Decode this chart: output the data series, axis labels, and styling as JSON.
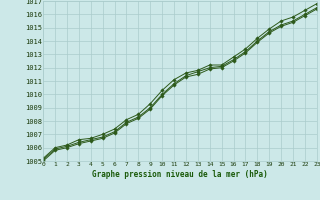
{
  "x": [
    0,
    1,
    2,
    3,
    4,
    5,
    6,
    7,
    8,
    9,
    10,
    11,
    12,
    13,
    14,
    15,
    16,
    17,
    18,
    19,
    20,
    21,
    22,
    23
  ],
  "line1": [
    1005.2,
    1006.0,
    1006.2,
    1006.6,
    1006.7,
    1007.0,
    1007.4,
    1008.1,
    1008.5,
    1009.3,
    1010.3,
    1011.1,
    1011.6,
    1011.8,
    1012.2,
    1012.2,
    1012.8,
    1013.4,
    1014.2,
    1014.9,
    1015.5,
    1015.8,
    1016.3,
    1016.8
  ],
  "line2": [
    1005.1,
    1005.9,
    1006.1,
    1006.4,
    1006.6,
    1006.8,
    1007.2,
    1007.9,
    1008.3,
    1009.0,
    1010.0,
    1010.8,
    1011.4,
    1011.7,
    1012.0,
    1012.1,
    1012.6,
    1013.2,
    1014.0,
    1014.7,
    1015.2,
    1015.5,
    1016.0,
    1016.5
  ],
  "line3": [
    1005.0,
    1005.8,
    1006.0,
    1006.3,
    1006.5,
    1006.7,
    1007.1,
    1007.8,
    1008.2,
    1008.9,
    1009.9,
    1010.7,
    1011.3,
    1011.5,
    1011.9,
    1012.0,
    1012.5,
    1013.1,
    1013.9,
    1014.6,
    1015.1,
    1015.4,
    1015.9,
    1016.4
  ],
  "xlabel": "Graphe pression niveau de la mer (hPa)",
  "ylim": [
    1005,
    1017
  ],
  "xlim": [
    0,
    23
  ],
  "yticks": [
    1005,
    1006,
    1007,
    1008,
    1009,
    1010,
    1011,
    1012,
    1013,
    1014,
    1015,
    1016,
    1017
  ],
  "xticks": [
    0,
    1,
    2,
    3,
    4,
    5,
    6,
    7,
    8,
    9,
    10,
    11,
    12,
    13,
    14,
    15,
    16,
    17,
    18,
    19,
    20,
    21,
    22,
    23
  ],
  "line_color": "#2d5a1b",
  "bg_color": "#cce8e8",
  "grid_color": "#aacccc",
  "label_color": "#1a3a0a",
  "bottom_label_color": "#1a5a0a"
}
